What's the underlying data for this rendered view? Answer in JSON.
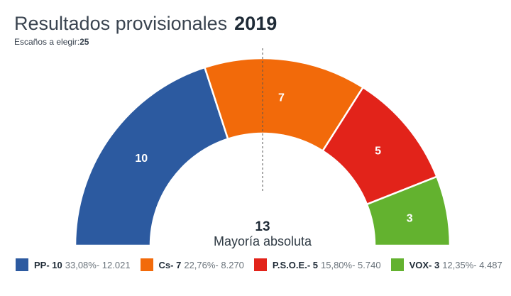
{
  "header": {
    "title": "Resultados provisionales",
    "year": "2019",
    "subtitle_label": "Escaños a elegir:",
    "subtitle_value": "25"
  },
  "majority": {
    "value": "13",
    "label": "Mayoría absoluta"
  },
  "chart_data": {
    "type": "pie",
    "subtype": "half-donut",
    "title": "Resultados provisionales 2019",
    "total_seats": 25,
    "majority": 13,
    "series": [
      {
        "name": "PP",
        "seats": 10,
        "percent": "33,08%",
        "votes": "12.021",
        "color": "#2c5aa0",
        "legend": "PP- 10",
        "detail": "33,08%- 12.021"
      },
      {
        "name": "Cs",
        "seats": 7,
        "percent": "22,76%",
        "votes": "8.270",
        "color": "#f26a0a",
        "legend": "Cs- 7",
        "detail": "22,76%- 8.270"
      },
      {
        "name": "P.S.O.E.",
        "seats": 5,
        "percent": "15,80%",
        "votes": "5.740",
        "color": "#e2231a",
        "legend": "P.S.O.E.- 5",
        "detail": "15,80%- 5.740"
      },
      {
        "name": "VOX",
        "seats": 3,
        "percent": "12,35%",
        "votes": "4.487",
        "color": "#63b22f",
        "legend": "VOX- 3",
        "detail": "12,35%- 4.487"
      }
    ],
    "legend_position": "bottom"
  }
}
